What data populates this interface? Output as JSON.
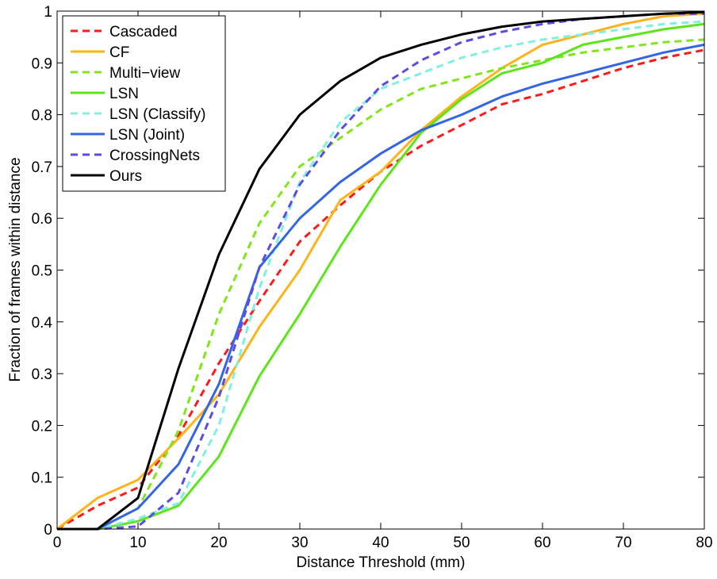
{
  "chart_data": {
    "type": "line",
    "title": "",
    "xlabel": "Distance Threshold (mm)",
    "ylabel": "Fraction of frames within distance",
    "xlim": [
      0,
      80
    ],
    "ylim": [
      0,
      1
    ],
    "xticks": [
      0,
      10,
      20,
      30,
      40,
      50,
      60,
      70,
      80
    ],
    "yticks": [
      0,
      0.1,
      0.2,
      0.3,
      0.4,
      0.5,
      0.6,
      0.7,
      0.8,
      0.9,
      1
    ],
    "xtick_labels": [
      "0",
      "10",
      "20",
      "30",
      "40",
      "50",
      "60",
      "70",
      "80"
    ],
    "ytick_labels": [
      "0",
      "0.1",
      "0.2",
      "0.3",
      "0.4",
      "0.5",
      "0.6",
      "0.7",
      "0.8",
      "0.9",
      "1"
    ],
    "grid": false,
    "legend_position": "top-left",
    "x": [
      0,
      5,
      10,
      15,
      20,
      25,
      30,
      35,
      40,
      45,
      50,
      55,
      60,
      65,
      70,
      75,
      80
    ],
    "series": [
      {
        "name": "Cascaded",
        "color": "#ff1a1a",
        "dash": true,
        "values": [
          0,
          0.045,
          0.08,
          0.18,
          0.32,
          0.44,
          0.555,
          0.625,
          0.69,
          0.74,
          0.78,
          0.82,
          0.84,
          0.865,
          0.89,
          0.91,
          0.925
        ]
      },
      {
        "name": "CF",
        "color": "#ffb31a",
        "dash": false,
        "values": [
          0,
          0.06,
          0.095,
          0.175,
          0.26,
          0.39,
          0.5,
          0.635,
          0.69,
          0.77,
          0.835,
          0.89,
          0.935,
          0.955,
          0.975,
          0.99,
          0.995
        ]
      },
      {
        "name": "Multi−view",
        "color": "#80e61a",
        "dash": true,
        "values": [
          0,
          0,
          0.04,
          0.19,
          0.415,
          0.59,
          0.7,
          0.755,
          0.81,
          0.85,
          0.87,
          0.89,
          0.905,
          0.92,
          0.93,
          0.94,
          0.945
        ]
      },
      {
        "name": "LSN",
        "color": "#5ce61a",
        "dash": false,
        "values": [
          0,
          0,
          0.015,
          0.045,
          0.14,
          0.295,
          0.415,
          0.545,
          0.665,
          0.765,
          0.83,
          0.88,
          0.9,
          0.935,
          0.95,
          0.965,
          0.975
        ]
      },
      {
        "name": "LSN (Classify)",
        "color": "#80f0e0",
        "dash": true,
        "values": [
          0,
          0,
          0.02,
          0.05,
          0.2,
          0.465,
          0.67,
          0.785,
          0.85,
          0.88,
          0.91,
          0.93,
          0.945,
          0.955,
          0.965,
          0.975,
          0.98
        ]
      },
      {
        "name": "LSN (Joint)",
        "color": "#3366e6",
        "dash": false,
        "values": [
          0,
          0,
          0.04,
          0.125,
          0.28,
          0.505,
          0.6,
          0.67,
          0.725,
          0.77,
          0.8,
          0.835,
          0.86,
          0.88,
          0.9,
          0.92,
          0.935
        ]
      },
      {
        "name": "CrossingNets",
        "color": "#5a4de6",
        "dash": true,
        "values": [
          0,
          0,
          0.005,
          0.07,
          0.255,
          0.505,
          0.665,
          0.77,
          0.855,
          0.905,
          0.94,
          0.96,
          0.975,
          0.985,
          0.99,
          0.995,
          0.995
        ]
      },
      {
        "name": "Ours",
        "color": "#000000",
        "dash": false,
        "values": [
          0,
          0,
          0.06,
          0.31,
          0.53,
          0.695,
          0.8,
          0.865,
          0.91,
          0.935,
          0.955,
          0.97,
          0.98,
          0.985,
          0.99,
          0.995,
          0.998
        ]
      }
    ]
  }
}
